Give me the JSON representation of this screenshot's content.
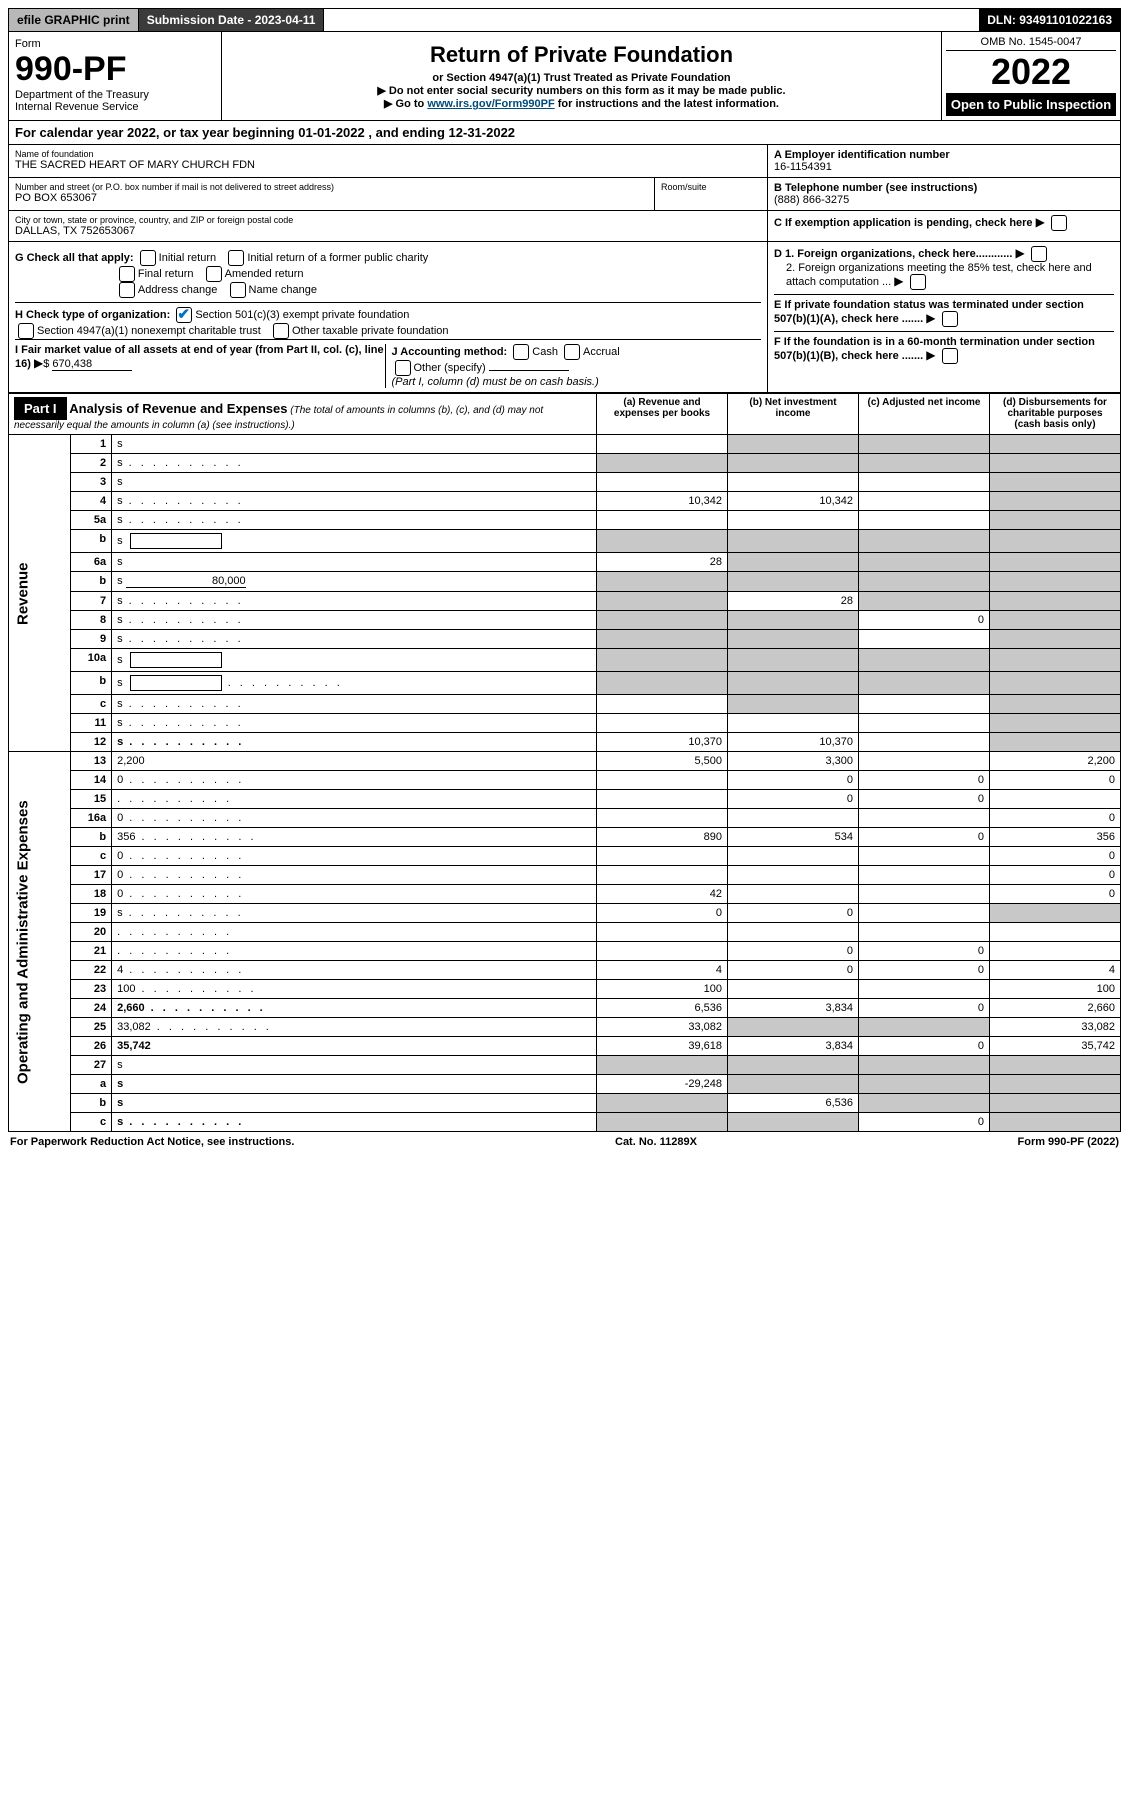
{
  "top": {
    "efile": "efile GRAPHIC print",
    "submission_label": "Submission Date - 2023-04-11",
    "dln": "DLN: 93491101022163"
  },
  "header": {
    "form_word": "Form",
    "form_number": "990-PF",
    "dept": "Department of the Treasury",
    "irs": "Internal Revenue Service",
    "title": "Return of Private Foundation",
    "subtitle": "or Section 4947(a)(1) Trust Treated as Private Foundation",
    "note1": "▶ Do not enter social security numbers on this form as it may be made public.",
    "note2_prefix": "▶ Go to ",
    "note2_link": "www.irs.gov/Form990PF",
    "note2_suffix": " for instructions and the latest information.",
    "omb": "OMB No. 1545-0047",
    "year": "2022",
    "open": "Open to Public Inspection"
  },
  "calendar": {
    "text_pre": "For calendar year 2022, or tax year beginning ",
    "begin": "01-01-2022",
    "mid": " , and ending ",
    "end": "12-31-2022"
  },
  "entity": {
    "name_label": "Name of foundation",
    "name": "THE SACRED HEART OF MARY CHURCH FDN",
    "addr_label": "Number and street (or P.O. box number if mail is not delivered to street address)",
    "addr": "PO BOX 653067",
    "room_label": "Room/suite",
    "city_label": "City or town, state or province, country, and ZIP or foreign postal code",
    "city": "DALLAS, TX  752653067",
    "A_label": "A Employer identification number",
    "A_val": "16-1154391",
    "B_label": "B Telephone number (see instructions)",
    "B_val": "(888) 866-3275",
    "C_label": "C If exemption application is pending, check here",
    "D1": "D 1. Foreign organizations, check here............",
    "D2": "2. Foreign organizations meeting the 85% test, check here and attach computation ...",
    "E": "E  If private foundation status was terminated under section 507(b)(1)(A), check here .......",
    "F": "F  If the foundation is in a 60-month termination under section 507(b)(1)(B), check here .......",
    "G_label": "G Check all that apply:",
    "G_opts": [
      "Initial return",
      "Initial return of a former public charity",
      "Final return",
      "Amended return",
      "Address change",
      "Name change"
    ],
    "H_label": "H Check type of organization:",
    "H_opt1": "Section 501(c)(3) exempt private foundation",
    "H_opt2": "Section 4947(a)(1) nonexempt charitable trust",
    "H_opt3": "Other taxable private foundation",
    "I_label": "I Fair market value of all assets at end of year (from Part II, col. (c), line 16)",
    "I_val": "670,438",
    "J_label": "J Accounting method:",
    "J_opts": [
      "Cash",
      "Accrual"
    ],
    "J_other": "Other (specify)",
    "J_note": "(Part I, column (d) must be on cash basis.)"
  },
  "part1": {
    "label": "Part I",
    "title": "Analysis of Revenue and Expenses",
    "title_note": "(The total of amounts in columns (b), (c), and (d) may not necessarily equal the amounts in column (a) (see instructions).)",
    "col_a": "(a)  Revenue and expenses per books",
    "col_b": "(b)  Net investment income",
    "col_c": "(c)  Adjusted net income",
    "col_d": "(d)  Disbursements for charitable purposes (cash basis only)"
  },
  "side_rev": "Revenue",
  "side_exp": "Operating and Administrative Expenses",
  "rows": [
    {
      "n": "1",
      "d": "s",
      "a": "",
      "b": "s",
      "c": "s"
    },
    {
      "n": "2",
      "d": "s",
      "dots": true,
      "a": "s",
      "b": "s",
      "c": "s"
    },
    {
      "n": "3",
      "d": "s",
      "a": "",
      "b": "",
      "c": ""
    },
    {
      "n": "4",
      "d": "s",
      "dots": true,
      "a": "10,342",
      "b": "10,342",
      "c": ""
    },
    {
      "n": "5a",
      "d": "s",
      "dots": true,
      "a": "",
      "b": "",
      "c": ""
    },
    {
      "n": "b",
      "d": "s",
      "inline": true,
      "a": "s",
      "b": "s",
      "c": "s"
    },
    {
      "n": "6a",
      "d": "s",
      "a": "28",
      "b": "s",
      "c": "s"
    },
    {
      "n": "b",
      "d": "s",
      "inlineval": "80,000",
      "a": "s",
      "b": "s",
      "c": "s"
    },
    {
      "n": "7",
      "d": "s",
      "dots": true,
      "a": "s",
      "b": "28",
      "c": "s"
    },
    {
      "n": "8",
      "d": "s",
      "dots": true,
      "a": "s",
      "b": "s",
      "c": "0"
    },
    {
      "n": "9",
      "d": "s",
      "dots": true,
      "a": "s",
      "b": "s",
      "c": ""
    },
    {
      "n": "10a",
      "d": "s",
      "inline": true,
      "a": "s",
      "b": "s",
      "c": "s"
    },
    {
      "n": "b",
      "d": "s",
      "dots": true,
      "inline": true,
      "a": "s",
      "b": "s",
      "c": "s"
    },
    {
      "n": "c",
      "d": "s",
      "dots": true,
      "a": "",
      "b": "s",
      "c": ""
    },
    {
      "n": "11",
      "d": "s",
      "dots": true,
      "a": "",
      "b": "",
      "c": ""
    },
    {
      "n": "12",
      "d": "s",
      "dots": true,
      "bold": true,
      "a": "10,370",
      "b": "10,370",
      "c": ""
    },
    {
      "n": "13",
      "d": "2,200",
      "a": "5,500",
      "b": "3,300",
      "c": ""
    },
    {
      "n": "14",
      "d": "0",
      "dots": true,
      "a": "",
      "b": "0",
      "c": "0"
    },
    {
      "n": "15",
      "d": "",
      "dots": true,
      "a": "",
      "b": "0",
      "c": "0"
    },
    {
      "n": "16a",
      "d": "0",
      "dots": true,
      "a": "",
      "b": "",
      "c": ""
    },
    {
      "n": "b",
      "d": "356",
      "dots": true,
      "a": "890",
      "b": "534",
      "c": "0"
    },
    {
      "n": "c",
      "d": "0",
      "dots": true,
      "a": "",
      "b": "",
      "c": ""
    },
    {
      "n": "17",
      "d": "0",
      "dots": true,
      "a": "",
      "b": "",
      "c": ""
    },
    {
      "n": "18",
      "d": "0",
      "dots": true,
      "a": "42",
      "b": "",
      "c": ""
    },
    {
      "n": "19",
      "d": "s",
      "dots": true,
      "a": "0",
      "b": "0",
      "c": ""
    },
    {
      "n": "20",
      "d": "",
      "dots": true,
      "a": "",
      "b": "",
      "c": ""
    },
    {
      "n": "21",
      "d": "",
      "dots": true,
      "a": "",
      "b": "0",
      "c": "0"
    },
    {
      "n": "22",
      "d": "4",
      "dots": true,
      "a": "4",
      "b": "0",
      "c": "0"
    },
    {
      "n": "23",
      "d": "100",
      "dots": true,
      "a": "100",
      "b": "",
      "c": ""
    },
    {
      "n": "24",
      "d": "2,660",
      "dots": true,
      "bold": true,
      "a": "6,536",
      "b": "3,834",
      "c": "0"
    },
    {
      "n": "25",
      "d": "33,082",
      "dots": true,
      "a": "33,082",
      "b": "s",
      "c": "s"
    },
    {
      "n": "26",
      "d": "35,742",
      "bold": true,
      "a": "39,618",
      "b": "3,834",
      "c": "0"
    },
    {
      "n": "27",
      "d": "s",
      "a": "s",
      "b": "s",
      "c": "s"
    },
    {
      "n": "a",
      "d": "s",
      "bold": true,
      "a": "-29,248",
      "b": "s",
      "c": "s"
    },
    {
      "n": "b",
      "d": "s",
      "bold": true,
      "a": "s",
      "b": "6,536",
      "c": "s"
    },
    {
      "n": "c",
      "d": "s",
      "dots": true,
      "bold": true,
      "a": "s",
      "b": "s",
      "c": "0"
    }
  ],
  "footer": {
    "left": "For Paperwork Reduction Act Notice, see instructions.",
    "mid": "Cat. No. 11289X",
    "right": "Form 990-PF (2022)"
  },
  "colors": {
    "link": "#004b7a",
    "check": "#0070c0",
    "shade": "#c8c8c8"
  }
}
